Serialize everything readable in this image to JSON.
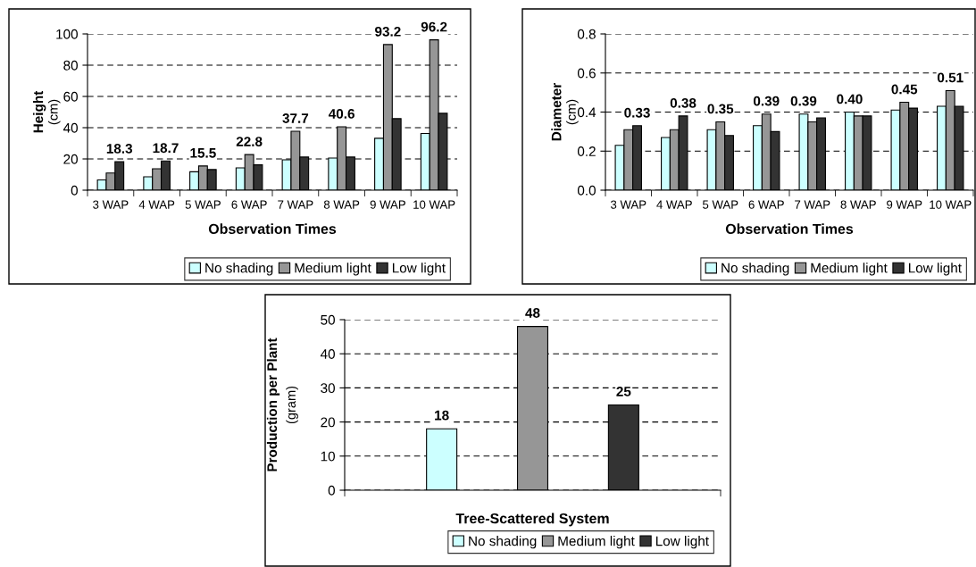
{
  "chart_data": [
    {
      "type": "bar",
      "xlabel": "Observation Times",
      "ylabel": "Height (cm)",
      "categories": [
        "3 WAP",
        "4 WAP",
        "5 WAP",
        "6 WAP",
        "7 WAP",
        "8 WAP",
        "9 WAP",
        "10 WAP"
      ],
      "series": [
        {
          "name": "No shading",
          "color": "#ccffff",
          "values": [
            6.6,
            8.6,
            11.8,
            14.3,
            19.4,
            20.6,
            33.2,
            36.3
          ],
          "value_labels": [
            null,
            null,
            null,
            null,
            null,
            null,
            null,
            null
          ]
        },
        {
          "name": "Medium light",
          "color": "#969696",
          "values": [
            11.0,
            13.7,
            15.5,
            22.8,
            37.7,
            40.6,
            93.2,
            96.2
          ],
          "value_labels": [
            null,
            null,
            "15.5",
            "22.8",
            "37.7",
            "40.6",
            "93.2",
            "96.2"
          ]
        },
        {
          "name": "Low light",
          "color": "#333333",
          "values": [
            18.3,
            18.7,
            13.2,
            16.2,
            21.2,
            21.2,
            45.8,
            49.2
          ],
          "value_labels": [
            "18.3",
            "18.7",
            null,
            null,
            null,
            null,
            null,
            null
          ]
        }
      ],
      "ylim": [
        0,
        100
      ],
      "yticks": [
        0,
        20,
        40,
        60,
        80,
        100
      ],
      "grid": "y",
      "legend": "bottom right"
    },
    {
      "type": "bar",
      "xlabel": "Observation Times",
      "ylabel": "Diameter (cm)",
      "categories": [
        "3 WAP",
        "4 WAP",
        "5 WAP",
        "6 WAP",
        "7 WAP",
        "8 WAP",
        "9 WAP",
        "10 WAP"
      ],
      "series": [
        {
          "name": "No shading",
          "color": "#ccffff",
          "values": [
            0.23,
            0.27,
            0.31,
            0.33,
            0.39,
            0.4,
            0.41,
            0.43
          ],
          "value_labels": [
            null,
            null,
            null,
            null,
            "0.39",
            "0.40",
            null,
            null
          ]
        },
        {
          "name": "Medium light",
          "color": "#969696",
          "values": [
            0.31,
            0.31,
            0.35,
            0.39,
            0.35,
            0.38,
            0.45,
            0.51
          ],
          "value_labels": [
            null,
            null,
            "0.35",
            "0.39",
            null,
            null,
            "0.45",
            "0.51"
          ]
        },
        {
          "name": "Low light",
          "color": "#333333",
          "values": [
            0.33,
            0.38,
            0.28,
            0.3,
            0.37,
            0.38,
            0.42,
            0.43
          ],
          "value_labels": [
            "0.33",
            "0.38",
            null,
            null,
            null,
            null,
            null,
            null
          ]
        }
      ],
      "ylim": [
        0,
        0.8
      ],
      "yticks": [
        {
          "value": 0,
          "label": "0.0"
        },
        0.2,
        0.4,
        0.6,
        0.8
      ],
      "grid": "y",
      "legend": "bottom right"
    },
    {
      "type": "bar",
      "xlabel": "Tree-Scattered System",
      "ylabel": "Production per Plant (gram)",
      "categories": [
        null
      ],
      "series": [
        {
          "name": "No shading",
          "color": "#ccffff",
          "values": [
            18
          ]
        },
        {
          "name": "Medium light",
          "color": "#969696",
          "values": [
            48
          ]
        },
        {
          "name": "Low light",
          "color": "#333333",
          "values": [
            25
          ]
        }
      ],
      "ylim": [
        0,
        50
      ],
      "yticks": [
        0,
        10,
        20,
        30,
        40,
        50
      ],
      "grid": "y",
      "legend": "bottom right",
      "data_labels": true
    }
  ]
}
